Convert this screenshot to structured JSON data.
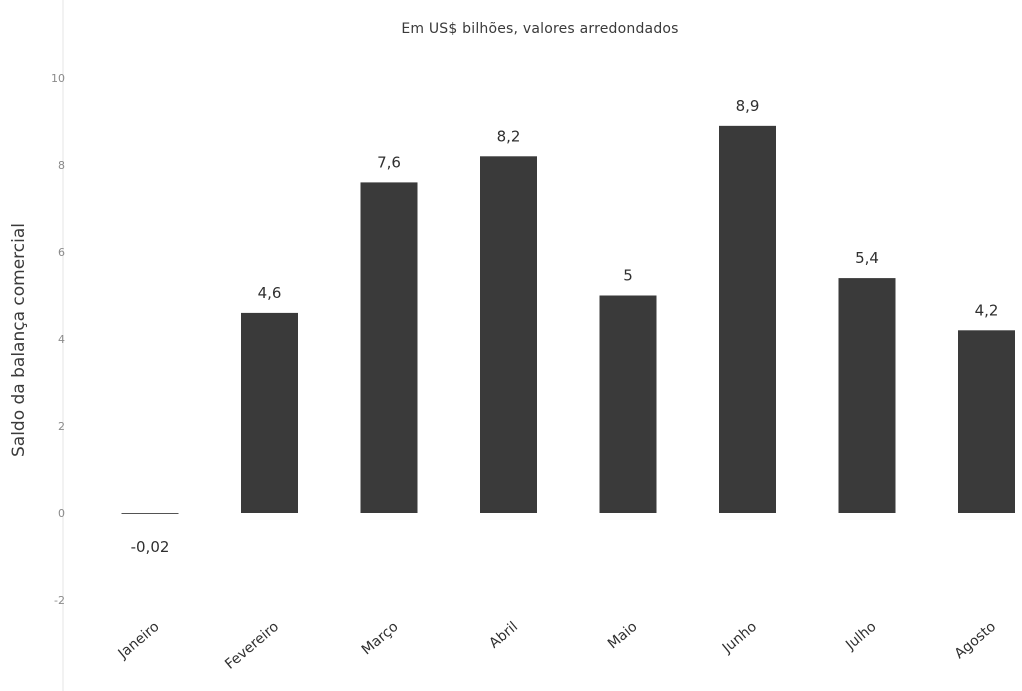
{
  "chart_data": {
    "type": "bar",
    "subtitle": "Em US$ bilhões, valores arredondados",
    "ylabel": "Saldo da balança comercial",
    "categories": [
      "Janeiro",
      "Fevereiro",
      "Março",
      "Abril",
      "Maio",
      "Junho",
      "Julho",
      "Agosto"
    ],
    "values": [
      -0.02,
      4.6,
      7.6,
      8.2,
      5,
      8.9,
      5.4,
      4.2
    ],
    "value_labels": [
      "-0,02",
      "4,6",
      "7,6",
      "8,2",
      "5",
      "8,9",
      "5,4",
      "4,2"
    ],
    "y_ticks": [
      -2,
      0,
      2,
      4,
      6,
      8,
      10
    ],
    "ylim": [
      -2,
      10
    ],
    "grid": false,
    "bar_color": "#3a3a3a"
  }
}
